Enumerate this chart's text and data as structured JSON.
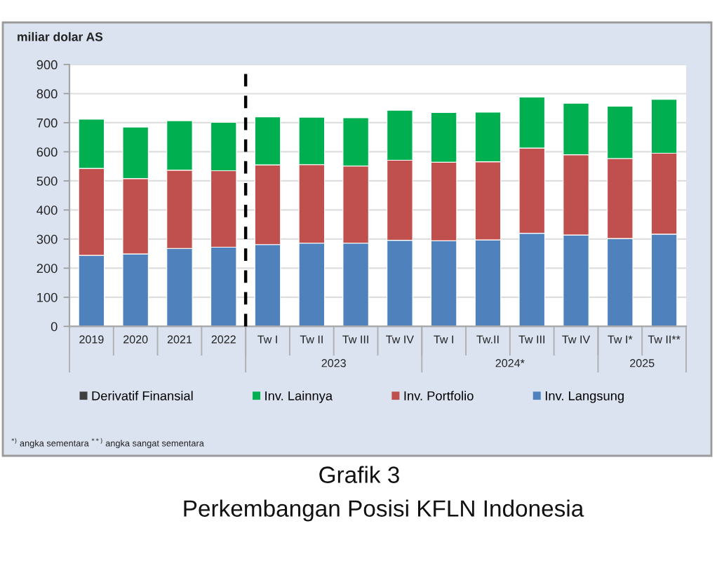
{
  "chart_data": {
    "type": "bar",
    "stacked": true,
    "title": "Grafik 3",
    "subtitle": "Perkembangan Posisi KFLN Indonesia",
    "ylabel": "miliar dolar AS",
    "categories": [
      "2019",
      "2020",
      "2021",
      "2022",
      "Tw I",
      "Tw II",
      "Tw III",
      "Tw IV",
      "Tw I",
      "Tw.II",
      "Tw III",
      "Tw IV",
      "Tw I*",
      "Tw II**"
    ],
    "series": [
      {
        "name": "Inv. Langsung",
        "color": "#4f81bd",
        "values": [
          244,
          249,
          268,
          272,
          281,
          286,
          286,
          296,
          294,
          297,
          320,
          314,
          302,
          317
        ]
      },
      {
        "name": "Inv. Portfolio",
        "color": "#c0504d",
        "values": [
          299,
          259,
          269,
          263,
          274,
          270,
          265,
          275,
          270,
          269,
          293,
          276,
          275,
          278
        ]
      },
      {
        "name": "Inv. Lainnya",
        "color": "#00b050",
        "values": [
          169,
          177,
          170,
          166,
          165,
          163,
          166,
          172,
          171,
          170,
          175,
          177,
          180,
          185
        ]
      },
      {
        "name": "Derivatif Finansial",
        "color": "#404040",
        "values": [
          null,
          null,
          null,
          null,
          null,
          null,
          null,
          null,
          null,
          null,
          null,
          null,
          null,
          null
        ]
      }
    ],
    "ylim": [
      0,
      900
    ],
    "yticks": [
      0,
      100,
      200,
      300,
      400,
      500,
      600,
      700,
      800,
      900
    ],
    "grid": "y",
    "legend": "bottom",
    "ref_lines": [
      {
        "axis": "x",
        "value": "Tw I",
        "color": "#000000",
        "line_style": "dashed"
      }
    ],
    "annotations": [
      "2023",
      "2024*",
      "2025",
      "$^{*)}$ angka sementara $^{**)}$ angka sangat sementara"
    ]
  }
}
